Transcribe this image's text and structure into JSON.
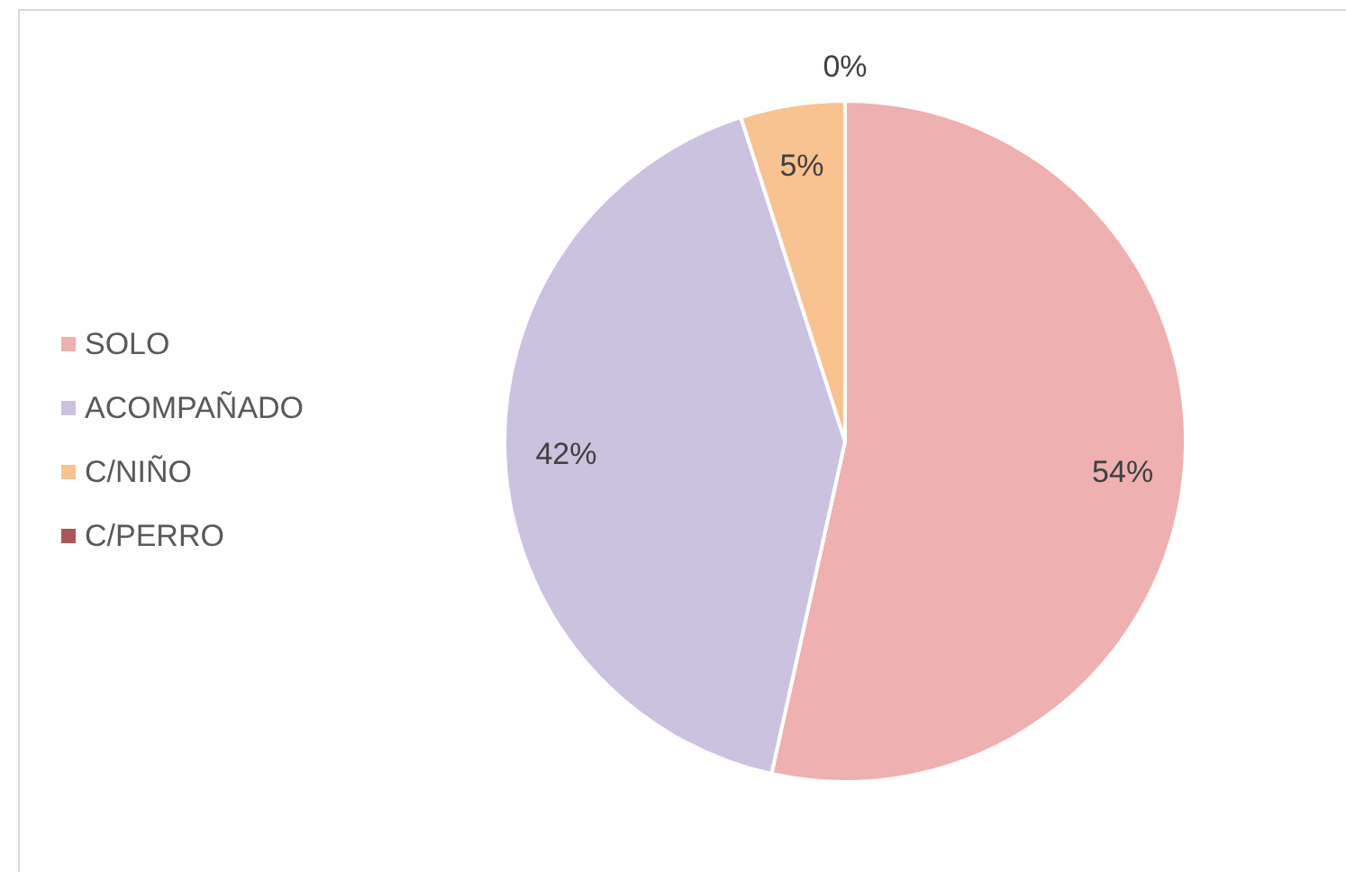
{
  "chart_data": {
    "type": "pie",
    "categories": [
      "SOLO",
      "ACOMPAÑADO",
      "C/NIÑO",
      "C/PERRO"
    ],
    "values": [
      54,
      42,
      5,
      0
    ],
    "value_labels": [
      "54%",
      "42%",
      "5%",
      "0%"
    ],
    "colors": [
      "#eeb0b0",
      "#cbc2e0",
      "#f8c291",
      "#a8585a"
    ],
    "legend": "left"
  }
}
